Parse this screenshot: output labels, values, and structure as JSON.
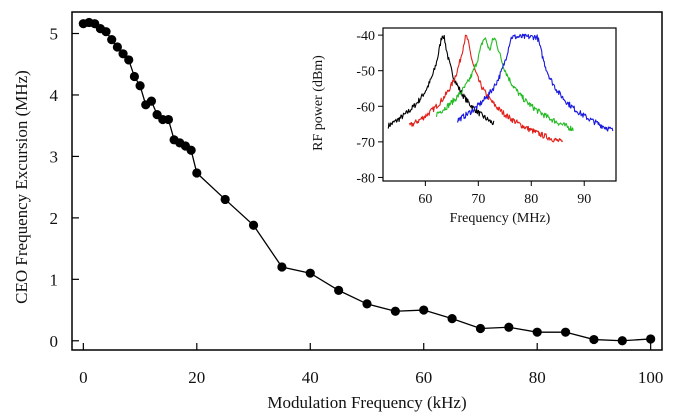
{
  "chart_data": [
    {
      "type": "line",
      "xlabel": "Modulation Frequency (kHz)",
      "ylabel": "CEO Frequency Excursion (MHz)",
      "xlim": [
        -2,
        102
      ],
      "ylim": [
        -0.15,
        5.35
      ],
      "xticks": [
        0,
        20,
        40,
        60,
        80,
        100
      ],
      "yticks": [
        0,
        1,
        2,
        3,
        4,
        5
      ],
      "grid": false,
      "markers": "filled-circle",
      "series": [
        {
          "color": "#000000",
          "x": [
            0,
            1,
            2,
            3,
            4,
            5,
            6,
            7,
            8,
            9,
            10,
            11,
            12,
            13,
            14,
            15,
            16,
            17,
            18,
            19,
            20,
            25,
            30,
            35,
            40,
            45,
            50,
            55,
            60,
            65,
            70,
            75,
            80,
            85,
            90,
            95,
            100
          ],
          "y": [
            5.16,
            5.18,
            5.16,
            5.08,
            5.03,
            4.9,
            4.78,
            4.67,
            4.57,
            4.3,
            4.15,
            3.84,
            3.9,
            3.68,
            3.6,
            3.6,
            3.27,
            3.22,
            3.17,
            3.1,
            2.73,
            2.3,
            1.88,
            1.2,
            1.1,
            0.82,
            0.6,
            0.48,
            0.5,
            0.36,
            0.2,
            0.22,
            0.14,
            0.14,
            0.02,
            0.0,
            0.03
          ]
        }
      ]
    },
    {
      "type": "line",
      "xlabel": "Frequency (MHz)",
      "ylabel": "RF power (dBm)",
      "xlim": [
        52,
        96
      ],
      "ylim": [
        -81,
        -38
      ],
      "xticks": [
        60,
        70,
        80,
        90
      ],
      "yticks": [
        -40,
        -50,
        -60,
        -70,
        -80
      ],
      "grid": false,
      "series": [
        {
          "color": "#000000",
          "kind": "lorentz",
          "range": [
            53,
            73
          ],
          "centers": [
            63.3
          ],
          "peak": -40,
          "width": 0.55,
          "floor": -78
        },
        {
          "color": "#e0201a",
          "kind": "lorentz",
          "range": [
            57,
            86
          ],
          "centers": [
            67.7
          ],
          "peak": -40.5,
          "width": 0.6,
          "floor": -78
        },
        {
          "color": "#22bb22",
          "kind": "doublet",
          "range": [
            62,
            88
          ],
          "centers": [
            71.2,
            73.0
          ],
          "peak": -41,
          "width": 0.8,
          "floor": -78.5
        },
        {
          "color": "#1a1adf",
          "kind": "flat",
          "range": [
            66,
            95.5
          ],
          "centers": [
            76.4,
            81.0
          ],
          "peak": -40.5,
          "width": 0.7,
          "floor": -78.5
        }
      ]
    }
  ]
}
